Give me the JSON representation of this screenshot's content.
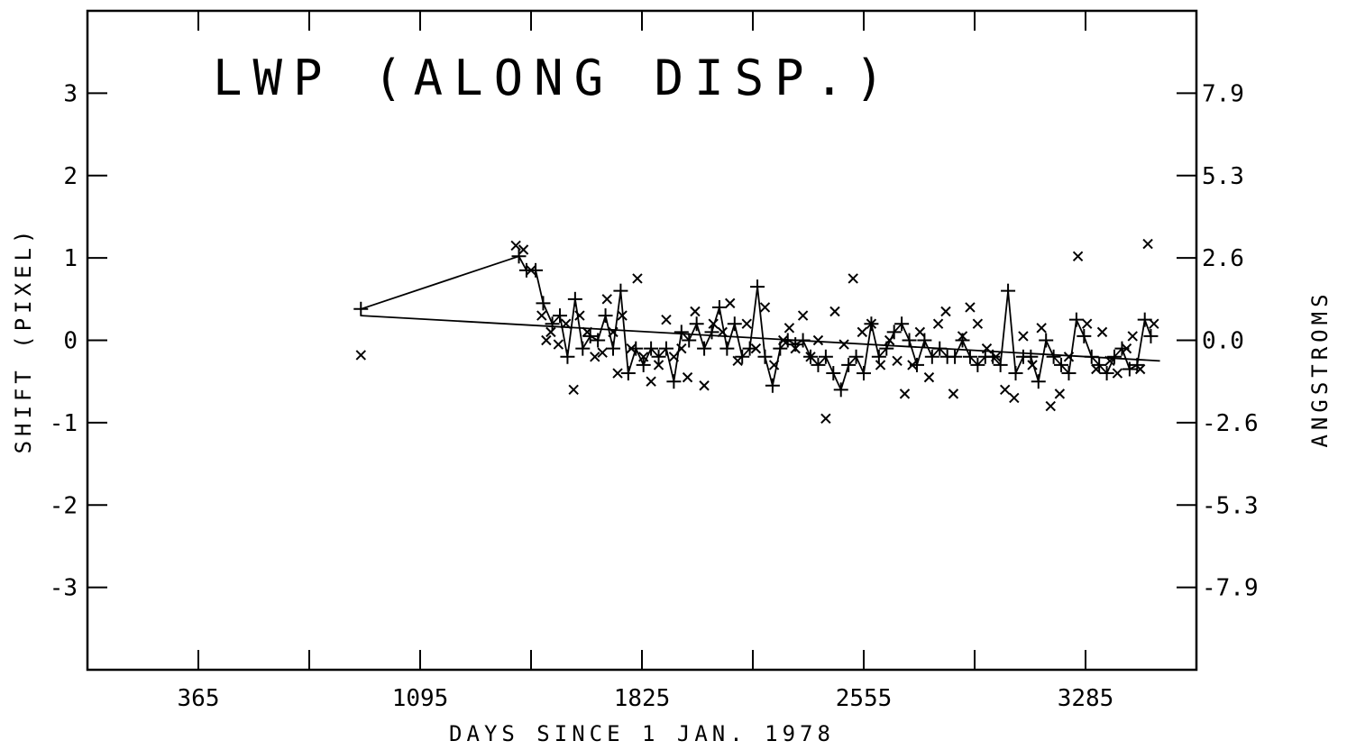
{
  "chart_data": {
    "type": "scatter",
    "title": "LWP  (ALONG DISP.)",
    "xlabel": "DAYS SINCE  1 JAN. 1978",
    "ylabel": "SHIFT (PIXEL)",
    "ylabel_right": "ANGSTROMS",
    "xlim": [
      0,
      3650
    ],
    "ylim": [
      -4,
      4
    ],
    "x_ticks_labeled": [
      365,
      1095,
      1825,
      2555,
      3285
    ],
    "x_ticks_minor": [
      730,
      1460,
      2190,
      2920,
      3650
    ],
    "y_ticks": [
      -3,
      -2,
      -1,
      0,
      1,
      2,
      3
    ],
    "y_tick_labels": [
      "-3",
      "-2",
      "-1",
      "0",
      "1",
      "2",
      "3"
    ],
    "y2_tick_values": [
      3,
      2,
      1,
      0,
      -1,
      -2,
      -3
    ],
    "y2_tick_labels": [
      "7.9",
      "5.3",
      "2.6",
      "0.0",
      "-2.6",
      "-5.3",
      "-7.9"
    ],
    "grid": false,
    "series": [
      {
        "marker": "plus",
        "connected": true,
        "x": [
          900,
          1420,
          1445,
          1475,
          1500,
          1530,
          1555,
          1580,
          1605,
          1630,
          1655,
          1680,
          1705,
          1730,
          1755,
          1780,
          1805,
          1830,
          1855,
          1880,
          1905,
          1930,
          1955,
          1980,
          2005,
          2030,
          2055,
          2080,
          2105,
          2130,
          2155,
          2180,
          2205,
          2230,
          2255,
          2280,
          2305,
          2330,
          2355,
          2380,
          2405,
          2430,
          2455,
          2480,
          2505,
          2530,
          2555,
          2580,
          2605,
          2630,
          2655,
          2680,
          2705,
          2730,
          2755,
          2780,
          2805,
          2830,
          2855,
          2880,
          2905,
          2930,
          2955,
          2980,
          3005,
          3030,
          3055,
          3080,
          3105,
          3130,
          3155,
          3180,
          3205,
          3230,
          3255,
          3280,
          3305,
          3330,
          3355,
          3380,
          3405,
          3430,
          3455,
          3480,
          3500
        ],
        "y": [
          0.38,
          1.02,
          0.85,
          0.85,
          0.45,
          0.2,
          0.3,
          -0.2,
          0.5,
          -0.1,
          0.05,
          0.0,
          0.3,
          -0.1,
          0.6,
          -0.4,
          -0.1,
          -0.3,
          -0.1,
          -0.2,
          -0.1,
          -0.5,
          0.1,
          0.0,
          0.2,
          -0.1,
          0.1,
          0.4,
          -0.1,
          0.2,
          -0.2,
          -0.1,
          0.65,
          -0.2,
          -0.55,
          -0.1,
          0.0,
          -0.05,
          0.0,
          -0.2,
          -0.3,
          -0.2,
          -0.4,
          -0.6,
          -0.3,
          -0.2,
          -0.4,
          0.2,
          -0.2,
          -0.1,
          0.1,
          0.2,
          0.0,
          -0.3,
          0.0,
          -0.2,
          -0.1,
          -0.2,
          -0.2,
          0.0,
          -0.2,
          -0.3,
          -0.2,
          -0.2,
          -0.3,
          0.6,
          -0.4,
          -0.2,
          -0.2,
          -0.5,
          0.0,
          -0.2,
          -0.3,
          -0.4,
          0.25,
          0.05,
          -0.2,
          -0.3,
          -0.4,
          -0.2,
          -0.1,
          -0.35,
          -0.3,
          0.25,
          0.05
        ],
        "fit_x": [
          900,
          3530
        ],
        "fit_y": [
          0.3,
          -0.25
        ]
      },
      {
        "marker": "cross",
        "connected": false,
        "x": [
          900,
          1410,
          1435,
          1460,
          1495,
          1510,
          1525,
          1550,
          1575,
          1600,
          1620,
          1645,
          1670,
          1695,
          1710,
          1730,
          1745,
          1760,
          1790,
          1810,
          1830,
          1855,
          1880,
          1905,
          1930,
          1955,
          1975,
          2000,
          2030,
          2060,
          2090,
          2115,
          2140,
          2170,
          2200,
          2230,
          2260,
          2290,
          2310,
          2330,
          2355,
          2380,
          2405,
          2430,
          2460,
          2490,
          2520,
          2550,
          2580,
          2610,
          2640,
          2665,
          2690,
          2715,
          2740,
          2770,
          2800,
          2825,
          2850,
          2880,
          2905,
          2930,
          2960,
          2990,
          3020,
          3050,
          3080,
          3110,
          3140,
          3170,
          3200,
          3230,
          3260,
          3290,
          3320,
          3340,
          3365,
          3390,
          3420,
          3440,
          3465,
          3490,
          3510
        ],
        "y": [
          -0.18,
          1.15,
          1.1,
          0.85,
          0.3,
          0.0,
          0.1,
          -0.05,
          0.2,
          -0.6,
          0.3,
          0.1,
          -0.2,
          -0.15,
          0.5,
          0.1,
          -0.4,
          0.3,
          -0.1,
          0.75,
          -0.2,
          -0.5,
          -0.3,
          0.25,
          -0.2,
          -0.1,
          -0.45,
          0.35,
          -0.55,
          0.2,
          0.1,
          0.45,
          -0.25,
          0.2,
          -0.1,
          0.4,
          -0.3,
          0.0,
          0.15,
          -0.1,
          0.3,
          -0.2,
          0.0,
          -0.95,
          0.35,
          -0.05,
          0.75,
          0.1,
          0.2,
          -0.3,
          0.0,
          -0.25,
          -0.65,
          -0.3,
          0.1,
          -0.45,
          0.2,
          0.35,
          -0.65,
          0.05,
          0.4,
          0.2,
          -0.1,
          -0.2,
          -0.6,
          -0.7,
          0.05,
          -0.3,
          0.15,
          -0.8,
          -0.65,
          -0.2,
          1.02,
          0.2,
          -0.35,
          0.1,
          -0.25,
          -0.4,
          -0.1,
          0.05,
          -0.35,
          1.17,
          0.2
        ]
      }
    ]
  }
}
